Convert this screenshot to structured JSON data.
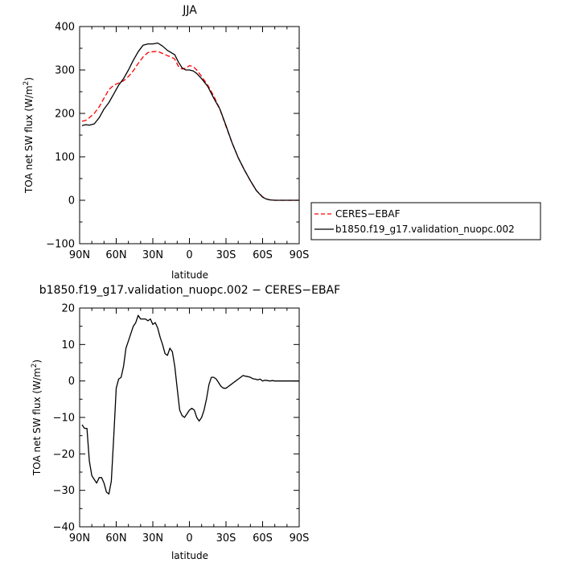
{
  "chart_data": [
    {
      "type": "line",
      "title": "JJA",
      "xlabel": "latitude",
      "ylabel": "TOA net SW flux (W/m²)",
      "ylabel_parts": {
        "before": "TOA net SW flux (W/m",
        "sup": "2",
        "after": ")"
      },
      "xlim": [
        90,
        -90
      ],
      "ylim": [
        -100,
        400
      ],
      "x_ticks": [
        90,
        60,
        30,
        0,
        -30,
        -60,
        -90
      ],
      "x_tick_labels": [
        "90N",
        "60N",
        "30N",
        "0",
        "30S",
        "60S",
        "90S"
      ],
      "y_ticks": [
        -100,
        0,
        100,
        200,
        300,
        400
      ],
      "y_tick_labels": [
        "−100",
        "0",
        "100",
        "200",
        "300",
        "400"
      ],
      "legend": {
        "position": "right",
        "entries": [
          "CERES−EBAF",
          "b1850.f19_g17.validation_nuopc.002"
        ]
      },
      "series": [
        {
          "name": "CERES−EBAF",
          "color": "#ff0000",
          "style": "dashed",
          "x": [
            88,
            85,
            82,
            78,
            74,
            70,
            66,
            62,
            58,
            54,
            50,
            46,
            42,
            38,
            34,
            30,
            26,
            22,
            18,
            15,
            12,
            9,
            6,
            3,
            0,
            -3,
            -6,
            -10,
            -15,
            -20,
            -25,
            -30,
            -35,
            -40,
            -45,
            -50,
            -55,
            -60,
            -63,
            -66,
            -70,
            -75,
            -80,
            -85,
            -90
          ],
          "values": [
            182,
            184,
            190,
            200,
            215,
            235,
            255,
            265,
            270,
            275,
            285,
            298,
            315,
            330,
            340,
            342,
            343,
            338,
            333,
            330,
            325,
            308,
            302,
            304,
            310,
            308,
            300,
            285,
            265,
            240,
            210,
            170,
            132,
            98,
            70,
            45,
            22,
            8,
            3,
            1,
            0,
            0,
            0,
            0,
            0
          ]
        },
        {
          "name": "b1850.f19_g17.validation_nuopc.002",
          "color": "#000000",
          "style": "solid",
          "x": [
            88,
            85,
            82,
            78,
            74,
            70,
            66,
            62,
            58,
            54,
            50,
            46,
            42,
            38,
            34,
            30,
            26,
            22,
            18,
            15,
            12,
            9,
            6,
            3,
            0,
            -3,
            -6,
            -10,
            -15,
            -20,
            -25,
            -30,
            -35,
            -40,
            -45,
            -50,
            -55,
            -60,
            -63,
            -66,
            -70,
            -75,
            -80,
            -85,
            -90
          ],
          "values": [
            172,
            174,
            173,
            176,
            190,
            210,
            225,
            245,
            265,
            280,
            300,
            322,
            342,
            357,
            360,
            360,
            362,
            355,
            345,
            340,
            335,
            318,
            305,
            300,
            300,
            298,
            292,
            280,
            262,
            235,
            210,
            172,
            132,
            98,
            70,
            45,
            22,
            7,
            3,
            1,
            0,
            0,
            0,
            0,
            0
          ]
        }
      ]
    },
    {
      "type": "line",
      "title": "b1850.f19_g17.validation_nuopc.002 − CERES−EBAF",
      "xlabel": "latitude",
      "ylabel": "TOA net SW flux (W/m²)",
      "ylabel_parts": {
        "before": "TOA net SW flux (W/m",
        "sup": "2",
        "after": ")"
      },
      "xlim": [
        90,
        -90
      ],
      "ylim": [
        -40,
        20
      ],
      "x_ticks": [
        90,
        60,
        30,
        0,
        -30,
        -60,
        -90
      ],
      "x_tick_labels": [
        "90N",
        "60N",
        "30N",
        "0",
        "30S",
        "60S",
        "90S"
      ],
      "y_ticks": [
        -40,
        -30,
        -20,
        -10,
        0,
        10,
        20
      ],
      "y_tick_labels": [
        "−40",
        "−30",
        "−20",
        "−10",
        "0",
        "10",
        "20"
      ],
      "series": [
        {
          "color": "#000000",
          "style": "solid",
          "x": [
            88,
            86,
            84,
            82,
            80,
            78,
            76,
            74,
            72,
            70,
            68,
            66,
            64,
            62,
            60,
            58,
            56,
            54,
            52,
            50,
            48,
            46,
            44,
            42,
            40,
            38,
            36,
            34,
            32,
            30,
            28,
            26,
            24,
            22,
            20,
            18,
            16,
            14,
            12,
            10,
            8,
            6,
            4,
            2,
            0,
            -2,
            -4,
            -6,
            -8,
            -10,
            -12,
            -14,
            -16,
            -18,
            -20,
            -22,
            -24,
            -26,
            -28,
            -30,
            -32,
            -34,
            -36,
            -38,
            -40,
            -42,
            -44,
            -46,
            -48,
            -50,
            -52,
            -54,
            -56,
            -58,
            -60,
            -62,
            -64,
            -66,
            -68,
            -70,
            -72,
            -74,
            -76,
            -78,
            -80,
            -82,
            -84,
            -86,
            -88,
            -90
          ],
          "values": [
            -12,
            -13,
            -13,
            -22,
            -26,
            -27,
            -28,
            -26.5,
            -26.5,
            -28,
            -30.5,
            -31,
            -27.5,
            -15,
            -2,
            0.5,
            1,
            4,
            9,
            11,
            13,
            15,
            16,
            18,
            17,
            17,
            17,
            16.5,
            17,
            15.5,
            16,
            14.5,
            12,
            10,
            7.5,
            7,
            9,
            8,
            4,
            -2,
            -8,
            -9.5,
            -10,
            -9,
            -8,
            -7.5,
            -8,
            -10,
            -11,
            -10,
            -8,
            -5,
            -1,
            1,
            1,
            0.5,
            -0.5,
            -1.5,
            -2,
            -2,
            -1.5,
            -1,
            -0.5,
            0,
            0.5,
            1,
            1.5,
            1.3,
            1.2,
            1,
            0.6,
            0.5,
            0.3,
            0.5,
            0,
            0.2,
            0.1,
            0,
            0.1,
            0,
            0,
            0,
            0,
            0,
            0,
            0,
            0,
            0,
            0,
            0
          ]
        }
      ]
    }
  ]
}
